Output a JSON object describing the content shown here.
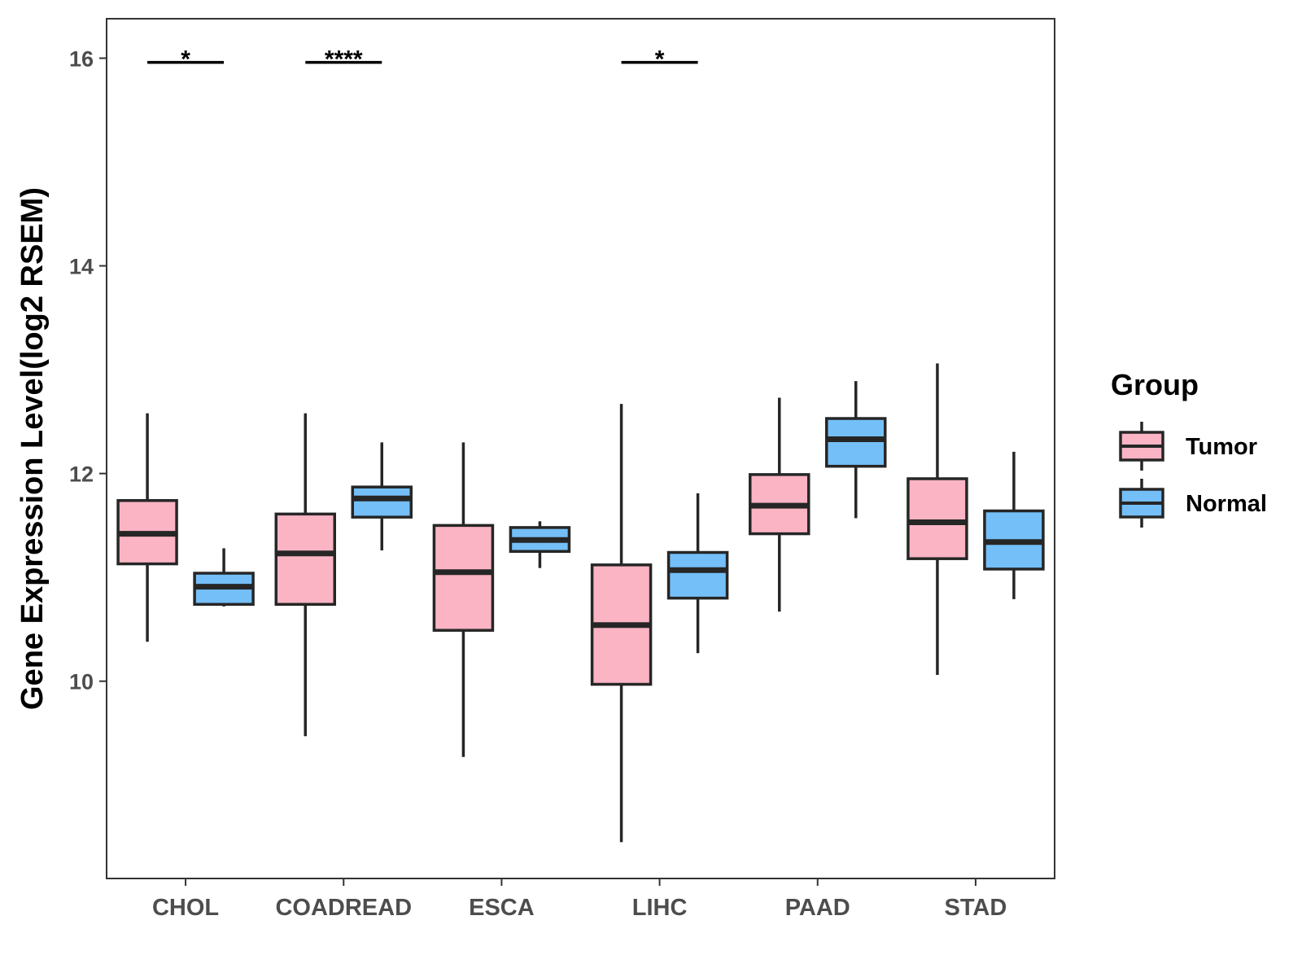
{
  "chart_data": {
    "type": "boxplot",
    "title": "",
    "xlabel": "",
    "ylabel": "Gene Expression Level(log2 RSEM)",
    "ylim": [
      8.1,
      16.38
    ],
    "yticks": [
      10,
      12,
      14,
      16
    ],
    "ytick_labels": [
      "10",
      "12",
      "14",
      "16"
    ],
    "grid": false,
    "legend_position": "right",
    "legend_title": "Group",
    "categories": [
      "CHOL",
      "COADREAD",
      "ESCA",
      "LIHC",
      "PAAD",
      "STAD"
    ],
    "series": [
      {
        "name": "Tumor",
        "color": "#FBB4C4",
        "boxes": [
          {
            "min": 10.38,
            "q1": 11.13,
            "median": 11.42,
            "q3": 11.74,
            "max": 12.58
          },
          {
            "min": 9.47,
            "q1": 10.74,
            "median": 11.23,
            "q3": 11.61,
            "max": 12.58
          },
          {
            "min": 9.27,
            "q1": 10.49,
            "median": 11.05,
            "q3": 11.5,
            "max": 12.3
          },
          {
            "min": 8.45,
            "q1": 9.97,
            "median": 10.54,
            "q3": 11.12,
            "max": 12.67
          },
          {
            "min": 10.67,
            "q1": 11.42,
            "median": 11.69,
            "q3": 11.99,
            "max": 12.73
          },
          {
            "min": 10.06,
            "q1": 11.18,
            "median": 11.53,
            "q3": 11.95,
            "max": 13.06
          }
        ]
      },
      {
        "name": "Normal",
        "color": "#74BFF8",
        "boxes": [
          {
            "min": 10.72,
            "q1": 10.74,
            "median": 10.91,
            "q3": 11.04,
            "max": 11.28
          },
          {
            "min": 11.26,
            "q1": 11.58,
            "median": 11.76,
            "q3": 11.87,
            "max": 12.3
          },
          {
            "min": 11.09,
            "q1": 11.25,
            "median": 11.36,
            "q3": 11.48,
            "max": 11.54
          },
          {
            "min": 10.27,
            "q1": 10.8,
            "median": 11.07,
            "q3": 11.24,
            "max": 11.81
          },
          {
            "min": 11.57,
            "q1": 12.07,
            "median": 12.33,
            "q3": 12.53,
            "max": 12.89
          },
          {
            "min": 10.79,
            "q1": 11.08,
            "median": 11.34,
            "q3": 11.64,
            "max": 12.21
          }
        ]
      }
    ],
    "annotations": [
      {
        "category": "CHOL",
        "label": "*",
        "y": 15.96
      },
      {
        "category": "COADREAD",
        "label": "****",
        "y": 15.96
      },
      {
        "category": "LIHC",
        "label": "*",
        "y": 15.96
      }
    ]
  }
}
